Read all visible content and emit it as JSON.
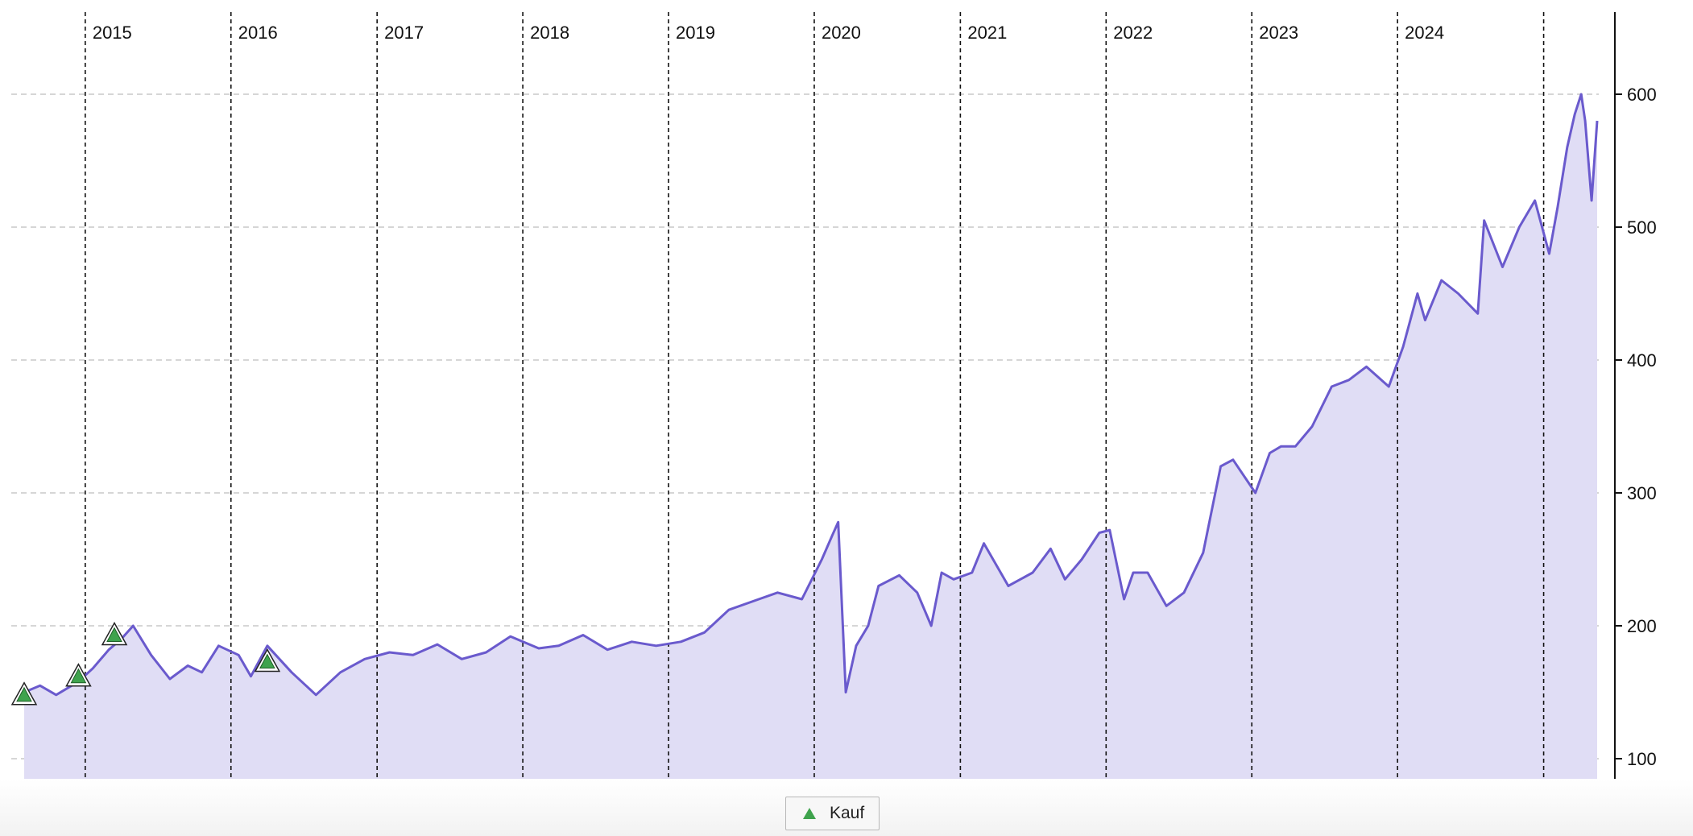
{
  "chart_data": {
    "type": "area",
    "title": "",
    "xlabel": "",
    "ylabel": "",
    "ylim": [
      85,
      660
    ],
    "yticks": [
      100,
      200,
      300,
      400,
      500,
      600
    ],
    "year_labels": [
      "2015",
      "2016",
      "2017",
      "2018",
      "2019",
      "2020",
      "2021",
      "2022",
      "2023",
      "2024"
    ],
    "year_boundaries": [
      "2015-01-01",
      "2016-01-01",
      "2017-01-01",
      "2018-01-01",
      "2019-01-01",
      "2020-01-01",
      "2021-01-01",
      "2022-01-01",
      "2023-01-01",
      "2024-01-01",
      "2025-01-01"
    ],
    "x_range": [
      "2014-08-01",
      "2025-05-15"
    ],
    "grid": true,
    "legend_position": "bottom-center",
    "line_color": "#6a5acd",
    "fill_color": "#e0ddf5",
    "series": [
      {
        "x": [
          "2014-08-01",
          "2014-09-10",
          "2014-10-20",
          "2014-12-15",
          "2015-01-20",
          "2015-03-01",
          "2015-04-01",
          "2015-05-01",
          "2015-06-15",
          "2015-08-01",
          "2015-09-15",
          "2015-10-20",
          "2015-12-01",
          "2016-01-20",
          "2016-02-20",
          "2016-04-01",
          "2016-06-01",
          "2016-08-01",
          "2016-10-01",
          "2016-12-01",
          "2017-02-01",
          "2017-04-01",
          "2017-06-01",
          "2017-08-01",
          "2017-10-01",
          "2017-12-01",
          "2018-02-10",
          "2018-04-01",
          "2018-06-01",
          "2018-08-01",
          "2018-10-01",
          "2018-12-01",
          "2019-02-01",
          "2019-04-01",
          "2019-06-01",
          "2019-08-15",
          "2019-10-01",
          "2019-12-01",
          "2020-01-20",
          "2020-02-15",
          "2020-03-01",
          "2020-03-20",
          "2020-04-15",
          "2020-05-15",
          "2020-06-10",
          "2020-08-01",
          "2020-09-15",
          "2020-10-20",
          "2020-11-15",
          "2020-12-15",
          "2021-01-30",
          "2021-03-01",
          "2021-05-01",
          "2021-07-01",
          "2021-08-15",
          "2021-09-20",
          "2021-11-01",
          "2021-12-15",
          "2022-01-10",
          "2022-02-15",
          "2022-03-10",
          "2022-04-15",
          "2022-06-01",
          "2022-07-15",
          "2022-09-01",
          "2022-10-15",
          "2022-11-15",
          "2023-01-10",
          "2023-02-15",
          "2023-03-15",
          "2023-04-20",
          "2023-06-01",
          "2023-07-20",
          "2023-09-01",
          "2023-10-15",
          "2023-12-10",
          "2024-01-15",
          "2024-02-20",
          "2024-03-10",
          "2024-04-20",
          "2024-06-01",
          "2024-07-20",
          "2024-08-05",
          "2024-09-20",
          "2024-11-01",
          "2024-12-10",
          "2025-01-15",
          "2025-02-05",
          "2025-03-01",
          "2025-03-20",
          "2025-04-05",
          "2025-04-15",
          "2025-05-01",
          "2025-05-15"
        ],
        "values": [
          150,
          155,
          148,
          158,
          168,
          182,
          190,
          200,
          178,
          160,
          170,
          165,
          185,
          178,
          162,
          185,
          165,
          148,
          165,
          175,
          180,
          178,
          186,
          175,
          180,
          192,
          183,
          185,
          193,
          182,
          188,
          185,
          188,
          195,
          212,
          220,
          225,
          220,
          250,
          268,
          278,
          150,
          185,
          200,
          230,
          238,
          225,
          200,
          240,
          235,
          240,
          262,
          230,
          240,
          258,
          235,
          250,
          270,
          272,
          220,
          240,
          240,
          215,
          225,
          255,
          320,
          325,
          300,
          330,
          335,
          335,
          350,
          380,
          385,
          395,
          380,
          410,
          450,
          430,
          460,
          450,
          435,
          505,
          470,
          500,
          520,
          480,
          515,
          560,
          585,
          600,
          580,
          520,
          580
        ]
      }
    ],
    "markers": {
      "legend_label": "Kauf",
      "color": "#3fa34d",
      "points": [
        {
          "x": "2014-08-01",
          "y": 148
        },
        {
          "x": "2014-12-15",
          "y": 162
        },
        {
          "x": "2015-03-15",
          "y": 193
        },
        {
          "x": "2016-04-01",
          "y": 173
        }
      ]
    }
  }
}
